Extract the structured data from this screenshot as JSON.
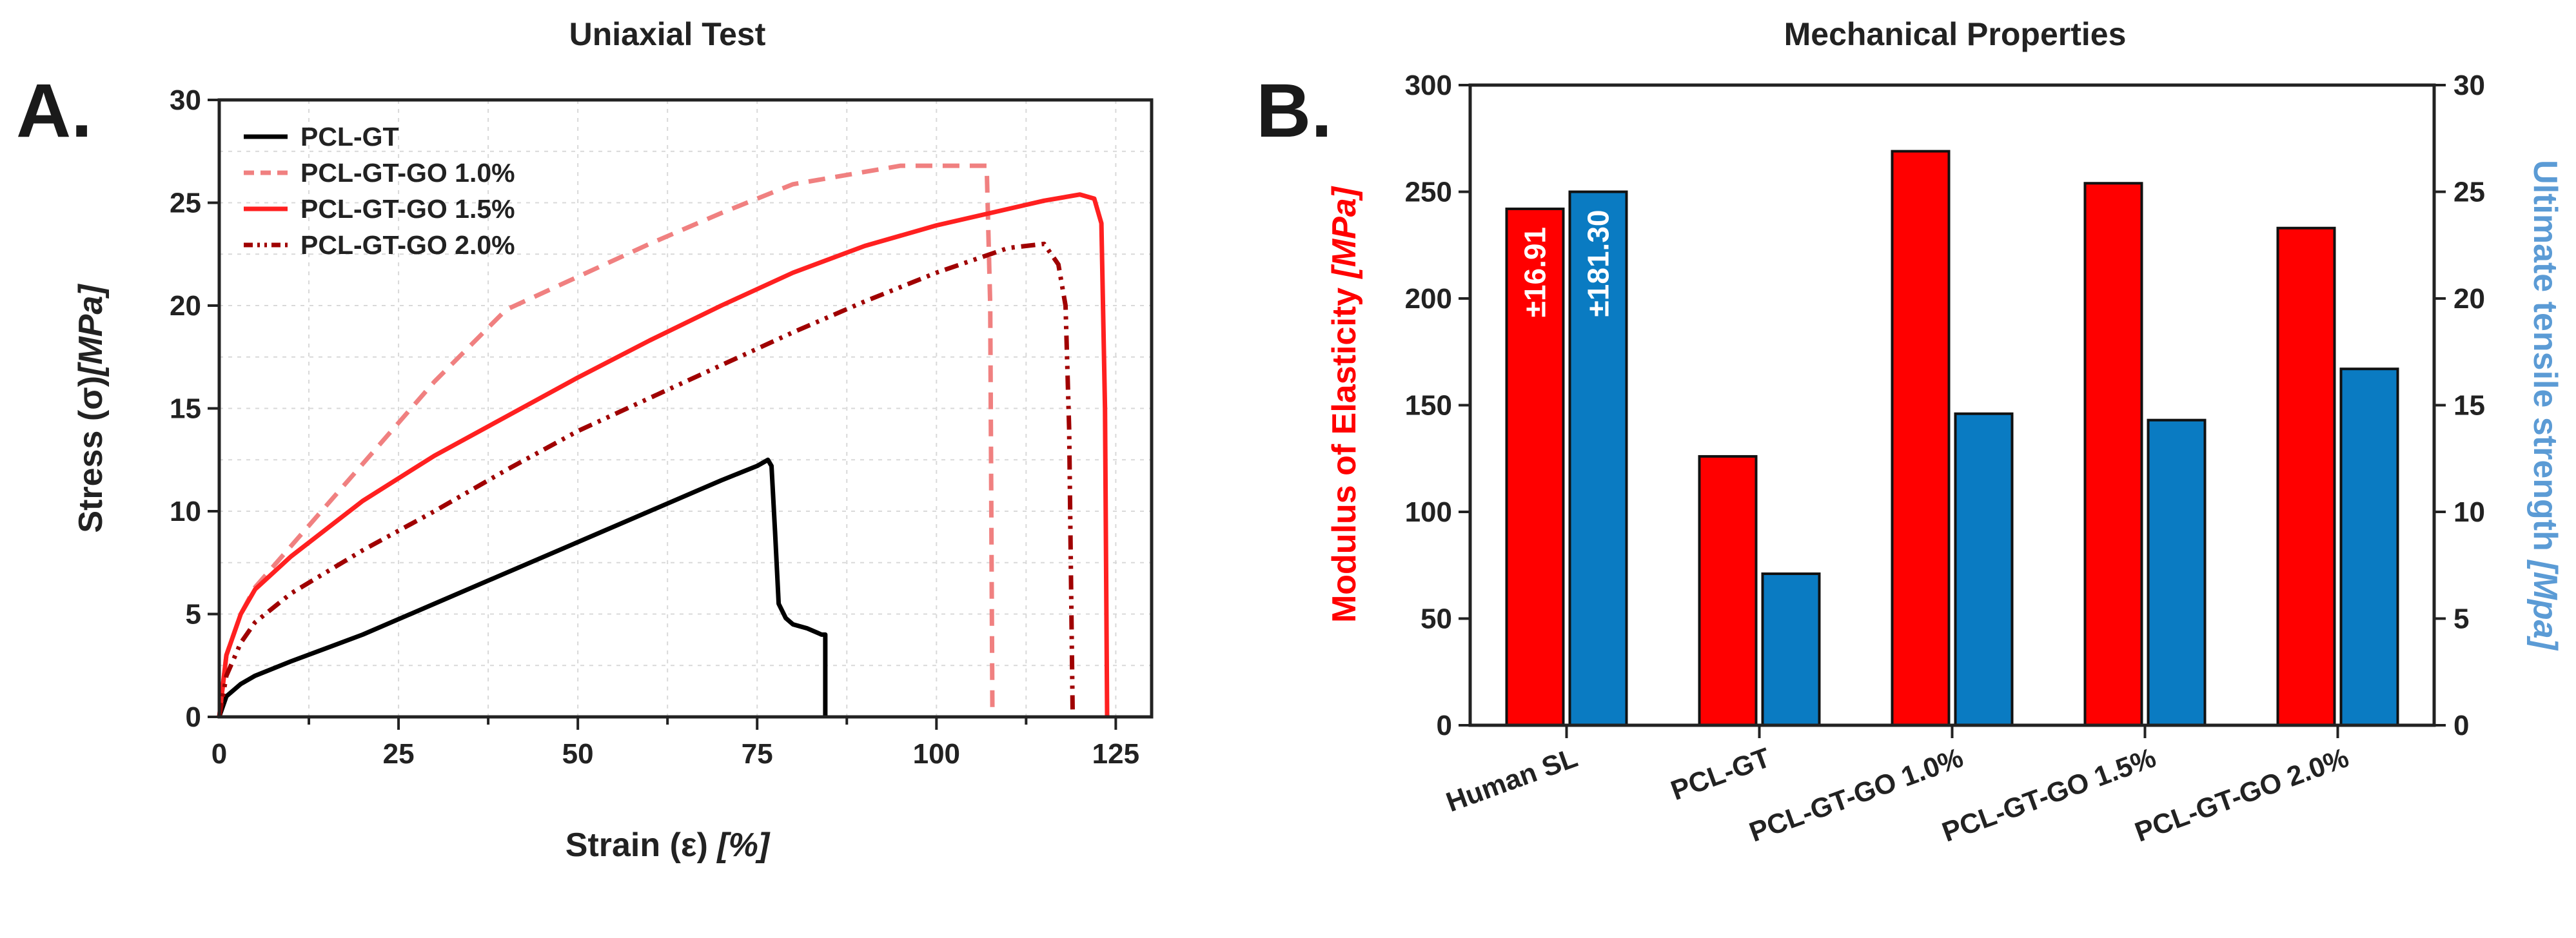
{
  "panel_a": {
    "label": "A.",
    "chart_data": {
      "type": "line",
      "title": "Uniaxial Test",
      "xlabel_main": "Strain (ε) ",
      "xlabel_unit": "[%]",
      "ylabel_main": "Stress (σ)",
      "ylabel_unit": "[MPa]",
      "xlim": [
        0,
        130
      ],
      "ylim": [
        0,
        30
      ],
      "xticks": [
        0,
        25,
        50,
        75,
        100,
        125
      ],
      "yticks": [
        0,
        5,
        10,
        15,
        20,
        25,
        30
      ],
      "grid": true,
      "legend_position": "top-left",
      "series": [
        {
          "name": "PCL-GT",
          "color": "#000000",
          "dash": "solid",
          "x": [
            0,
            1,
            3,
            5,
            10,
            20,
            30,
            40,
            50,
            60,
            70,
            75,
            76.5,
            77,
            77.5,
            78,
            79,
            80,
            82,
            84,
            84.5,
            84.5
          ],
          "y": [
            0,
            1.0,
            1.6,
            2.0,
            2.7,
            4.0,
            5.5,
            7.0,
            8.5,
            10.0,
            11.5,
            12.2,
            12.5,
            12.2,
            9,
            5.5,
            4.8,
            4.5,
            4.3,
            4.0,
            4.0,
            0
          ]
        },
        {
          "name": "PCL-GT-GO 1.0%",
          "color": "#f08080",
          "dash": "dashed",
          "x": [
            0,
            1,
            3,
            5,
            10,
            20,
            30,
            40,
            50,
            60,
            70,
            80,
            90,
            95,
            100,
            105,
            107,
            107.5,
            107.8
          ],
          "y": [
            0,
            3.0,
            5.0,
            6.3,
            8.3,
            12.3,
            16.3,
            19.8,
            21.4,
            23.0,
            24.5,
            25.9,
            26.5,
            26.8,
            26.8,
            26.8,
            26.8,
            20,
            0
          ]
        },
        {
          "name": "PCL-GT-GO 1.5%",
          "color": "#ff2020",
          "dash": "solid",
          "x": [
            0,
            1,
            3,
            5,
            10,
            20,
            30,
            40,
            50,
            60,
            70,
            80,
            90,
            100,
            110,
            115,
            120,
            122,
            123,
            123.5,
            123.8
          ],
          "y": [
            0,
            3.0,
            5.0,
            6.2,
            7.8,
            10.5,
            12.7,
            14.6,
            16.5,
            18.3,
            20.0,
            21.6,
            22.9,
            23.9,
            24.7,
            25.1,
            25.4,
            25.2,
            24,
            15,
            0
          ]
        },
        {
          "name": "PCL-GT-GO 2.0%",
          "color": "#a00000",
          "dash": "dashdotdot",
          "x": [
            0,
            1,
            3,
            5,
            10,
            20,
            30,
            40,
            50,
            60,
            70,
            80,
            90,
            100,
            110,
            115,
            117,
            118,
            118.5,
            119
          ],
          "y": [
            0,
            2.0,
            3.6,
            4.6,
            6.0,
            8.1,
            10.0,
            12.0,
            13.9,
            15.5,
            17.1,
            18.7,
            20.2,
            21.6,
            22.8,
            23.0,
            22.0,
            20,
            14,
            0
          ]
        }
      ]
    }
  },
  "panel_b": {
    "label": "B.",
    "chart_data": {
      "type": "bar",
      "title": "Mechanical Properties",
      "categories": [
        "Human SL",
        "PCL-GT",
        "PCL-GT-GO 1.0%",
        "PCL-GT-GO 1.5%",
        "PCL-GT-GO 2.0%"
      ],
      "ylabel_left_main": "Modulus of Elasticity ",
      "ylabel_left_unit": "[MPa]",
      "ylabel_right_main": "Ultimate tensile strength ",
      "ylabel_right_unit": "[Mpa]",
      "ylim_left": [
        0,
        300
      ],
      "ylim_right": [
        0,
        30
      ],
      "yticks_left": [
        0,
        50,
        100,
        150,
        200,
        250,
        300
      ],
      "yticks_right": [
        0,
        5,
        10,
        15,
        20,
        25,
        30
      ],
      "grid": false,
      "series": [
        {
          "axis": "left",
          "color": "#ff0000",
          "values": [
            242,
            126,
            269,
            254,
            233
          ]
        },
        {
          "axis": "right",
          "color": "#0a7bc2",
          "values": [
            25.0,
            7.1,
            14.6,
            14.3,
            16.7
          ]
        }
      ],
      "bar_labels": [
        "±16.91",
        "±181.30"
      ],
      "axis_colors": {
        "left": "#ff0000",
        "right": "#5b9bd5"
      }
    }
  }
}
